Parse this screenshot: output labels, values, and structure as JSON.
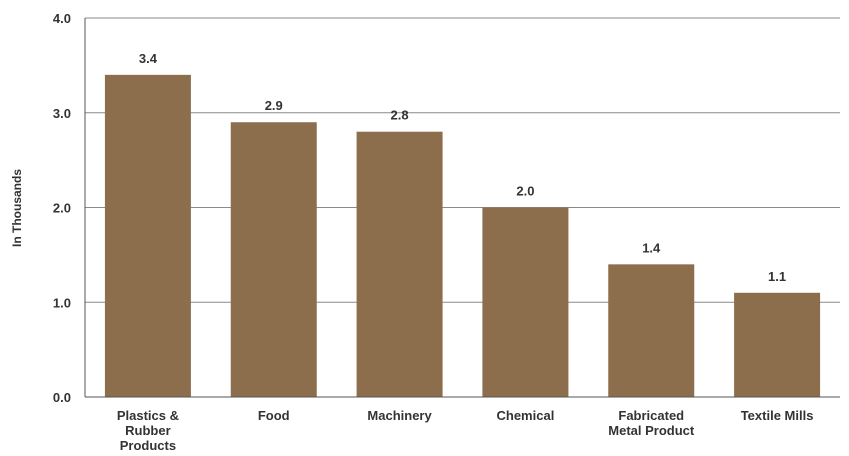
{
  "chart_data": {
    "type": "bar",
    "title": "",
    "xlabel": "",
    "ylabel": "In Thousands",
    "ylim": [
      0,
      4
    ],
    "yticks": [
      "0.0",
      "1.0",
      "2.0",
      "3.0",
      "4.0"
    ],
    "grid": true,
    "legend": "none",
    "categories": [
      [
        "Plastics &",
        "Rubber",
        "Products"
      ],
      [
        "Food"
      ],
      [
        "Machinery"
      ],
      [
        "Chemical"
      ],
      [
        "Fabricated",
        "Metal Product"
      ],
      [
        "Textile Mills"
      ]
    ],
    "values": [
      3.4,
      2.9,
      2.8,
      2.0,
      1.4,
      1.1
    ],
    "value_labels": [
      "3.4",
      "2.9",
      "2.8",
      "2.0",
      "1.4",
      "1.1"
    ],
    "colors": {
      "bar": "#8d6e4c",
      "grid": "#8a8a8a",
      "axis": "#555555"
    }
  }
}
